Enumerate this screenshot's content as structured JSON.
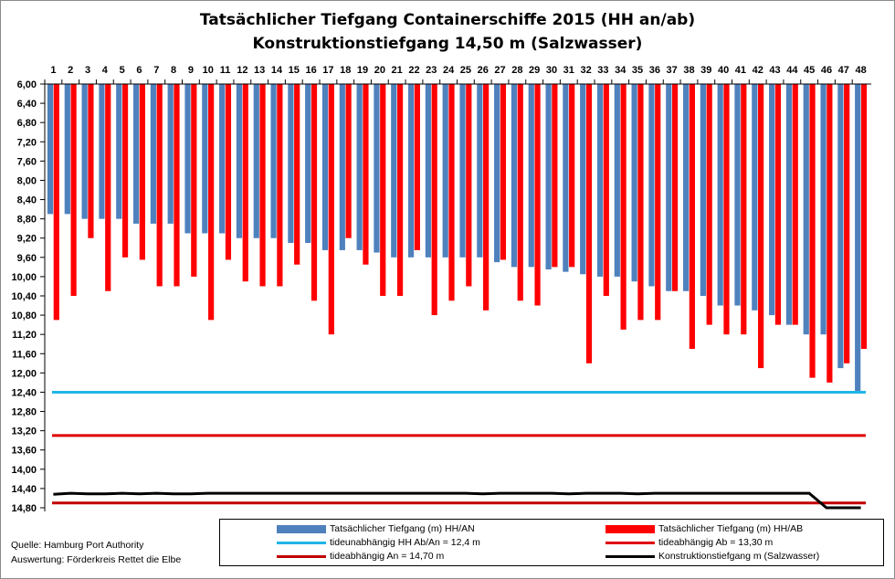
{
  "chart_data": {
    "type": "bar",
    "title": "Tatsächlicher Tiefgang Containerschiffe 2015 (HH an/ab)",
    "subtitle": "Konstruktionstiefgang 14,50 m (Salzwasser)",
    "y_axis_inverted": true,
    "ylim": [
      6.0,
      14.8
    ],
    "y_ticks": [
      "6,00",
      "6,40",
      "6,80",
      "7,20",
      "7,60",
      "8,00",
      "8,40",
      "8,80",
      "9,20",
      "9,60",
      "10,00",
      "10,40",
      "10,80",
      "11,20",
      "11,60",
      "12,00",
      "12,40",
      "12,80",
      "13,20",
      "13,60",
      "14,00",
      "14,40",
      "14,80"
    ],
    "categories": [
      "1",
      "2",
      "3",
      "4",
      "5",
      "6",
      "7",
      "8",
      "9",
      "10",
      "11",
      "12",
      "13",
      "14",
      "15",
      "16",
      "17",
      "18",
      "19",
      "20",
      "21",
      "22",
      "23",
      "24",
      "25",
      "26",
      "27",
      "28",
      "29",
      "30",
      "31",
      "32",
      "33",
      "34",
      "35",
      "36",
      "37",
      "38",
      "39",
      "40",
      "41",
      "42",
      "43",
      "44",
      "45",
      "46",
      "47",
      "48"
    ],
    "series": [
      {
        "name": "Tatsächlicher Tiefgang (m) HH/AN",
        "color": "#4f81bd",
        "values": [
          8.7,
          8.7,
          8.8,
          8.8,
          8.8,
          8.9,
          8.9,
          8.9,
          9.1,
          9.1,
          9.1,
          9.2,
          9.2,
          9.2,
          9.3,
          9.3,
          9.45,
          9.45,
          9.45,
          9.5,
          9.6,
          9.6,
          9.6,
          9.6,
          9.6,
          9.6,
          9.7,
          9.8,
          9.8,
          9.85,
          9.9,
          9.95,
          10.0,
          10.0,
          10.1,
          10.2,
          10.3,
          10.3,
          10.4,
          10.6,
          10.6,
          10.7,
          10.8,
          11.0,
          11.2,
          11.2,
          11.9,
          12.4
        ]
      },
      {
        "name": "Tatsächlicher Tiefgang (m) HH/AB",
        "color": "#ff0000",
        "values": [
          10.9,
          10.4,
          9.2,
          10.3,
          9.6,
          9.65,
          10.2,
          10.2,
          10.0,
          10.9,
          9.65,
          10.1,
          10.2,
          10.2,
          9.75,
          10.5,
          11.2,
          9.2,
          9.75,
          10.4,
          10.4,
          9.45,
          10.8,
          10.5,
          10.2,
          10.7,
          9.65,
          10.5,
          10.6,
          9.8,
          9.8,
          11.8,
          10.4,
          11.1,
          10.9,
          10.9,
          10.3,
          11.5,
          11.0,
          11.2,
          11.2,
          11.9,
          11.0,
          11.0,
          12.1,
          12.2,
          11.8,
          11.5
        ]
      },
      {
        "name": "tideunabhängig HH Ab/An = 12,4 m",
        "type": "line",
        "color": "#1fb6e8",
        "value": 12.4
      },
      {
        "name": "tideabhängig Ab = 13,30 m",
        "type": "line",
        "color": "#e00000",
        "value": 13.3
      },
      {
        "name": "tideabhängig An = 14,70 m",
        "type": "line",
        "color": "#c00000",
        "value": 14.7
      },
      {
        "name": "Konstruktionstiefgang  m (Salzwasser)",
        "type": "line",
        "color": "#000000",
        "values": [
          14.52,
          14.5,
          14.51,
          14.51,
          14.5,
          14.51,
          14.5,
          14.51,
          14.51,
          14.5,
          14.5,
          14.5,
          14.5,
          14.5,
          14.5,
          14.5,
          14.5,
          14.5,
          14.5,
          14.5,
          14.5,
          14.5,
          14.5,
          14.5,
          14.5,
          14.51,
          14.5,
          14.5,
          14.5,
          14.5,
          14.51,
          14.5,
          14.5,
          14.5,
          14.51,
          14.5,
          14.5,
          14.5,
          14.5,
          14.5,
          14.5,
          14.5,
          14.5,
          14.5,
          14.5,
          14.8,
          14.8,
          14.8
        ]
      }
    ],
    "legend_position": "bottom-right",
    "grid": false
  },
  "source": {
    "line1": "Quelle: Hamburg Port Authority",
    "line2": "Auswertung: Förderkreis Rettet die Elbe"
  }
}
